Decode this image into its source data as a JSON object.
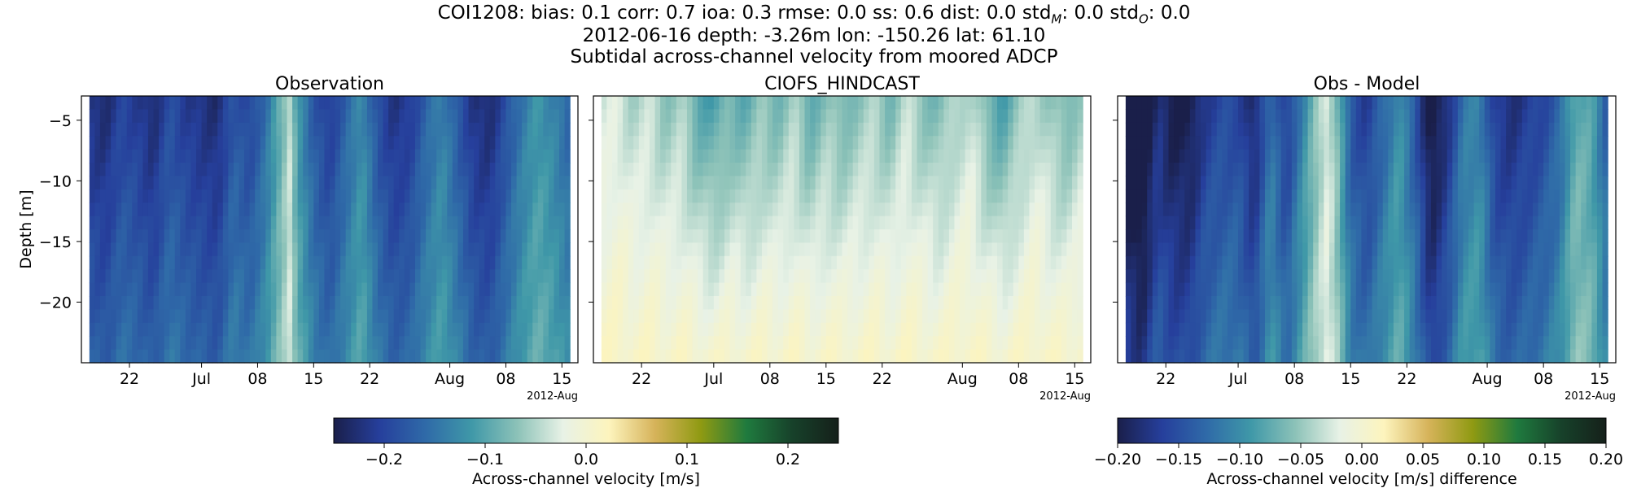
{
  "figure": {
    "title_lines": [
      "COI1208: bias: 0.1  corr: 0.7  ioa: 0.3  rmse: 0.0  ss: 0.6  dist: 0.0  std",
      "2012-06-16 depth: -3.26m lon: -150.26 lat: 61.10",
      "Subtidal across-channel velocity from moored ADCP"
    ],
    "title_stats": {
      "station": "COI1208",
      "bias": "0.1",
      "corr": "0.7",
      "ioa": "0.3",
      "rmse": "0.0",
      "ss": "0.6",
      "dist": "0.0",
      "std_M": "0.0",
      "std_O": "0.0"
    }
  },
  "chart_data": [
    {
      "type": "heatmap",
      "title": "Observation",
      "ylabel": "Depth [m]",
      "ylim": [
        -25,
        -3
      ],
      "yticks": [
        -5,
        -10,
        -15,
        -20
      ],
      "xticks": [
        "22",
        "Jul",
        "08",
        "15",
        "22",
        "Aug",
        "08",
        "15"
      ],
      "x_offset_label": "2012-Aug",
      "x_range": [
        "2012-06-16",
        "2012-08-16"
      ],
      "colormap": "delta",
      "vlim": [
        -0.25,
        0.25
      ],
      "time_profile": [
        {
          "date": "2012-06-17",
          "value": -0.21
        },
        {
          "date": "2012-06-19",
          "value": -0.22
        },
        {
          "date": "2012-06-21",
          "value": -0.19
        },
        {
          "date": "2012-06-23",
          "value": -0.2
        },
        {
          "date": "2012-06-25",
          "value": -0.22
        },
        {
          "date": "2012-06-27",
          "value": -0.18
        },
        {
          "date": "2012-06-29",
          "value": -0.2
        },
        {
          "date": "2012-07-01",
          "value": -0.21
        },
        {
          "date": "2012-07-03",
          "value": -0.22
        },
        {
          "date": "2012-07-05",
          "value": -0.17
        },
        {
          "date": "2012-07-07",
          "value": -0.19
        },
        {
          "date": "2012-07-09",
          "value": -0.15
        },
        {
          "date": "2012-07-11",
          "value": -0.08
        },
        {
          "date": "2012-07-12",
          "value": -0.04
        },
        {
          "date": "2012-07-13",
          "value": -0.11
        },
        {
          "date": "2012-07-15",
          "value": -0.17
        },
        {
          "date": "2012-07-17",
          "value": -0.2
        },
        {
          "date": "2012-07-19",
          "value": -0.16
        },
        {
          "date": "2012-07-21",
          "value": -0.12
        },
        {
          "date": "2012-07-23",
          "value": -0.18
        },
        {
          "date": "2012-07-25",
          "value": -0.21
        },
        {
          "date": "2012-07-27",
          "value": -0.2
        },
        {
          "date": "2012-07-29",
          "value": -0.16
        },
        {
          "date": "2012-07-31",
          "value": -0.13
        },
        {
          "date": "2012-08-02",
          "value": -0.17
        },
        {
          "date": "2012-08-04",
          "value": -0.21
        },
        {
          "date": "2012-08-06",
          "value": -0.22
        },
        {
          "date": "2012-08-08",
          "value": -0.18
        },
        {
          "date": "2012-08-10",
          "value": -0.14
        },
        {
          "date": "2012-08-12",
          "value": -0.11
        },
        {
          "date": "2012-08-14",
          "value": -0.13
        },
        {
          "date": "2012-08-16",
          "value": -0.16
        }
      ]
    },
    {
      "type": "heatmap",
      "title": "CIOFS_HINDCAST",
      "ylim": [
        -25,
        -3
      ],
      "xticks": [
        "22",
        "Jul",
        "08",
        "15",
        "22",
        "Aug",
        "08",
        "15"
      ],
      "x_offset_label": "2012-Aug",
      "x_range": [
        "2012-06-16",
        "2012-08-16"
      ],
      "colormap": "delta",
      "vlim": [
        -0.25,
        0.25
      ],
      "time_profile": [
        {
          "date": "2012-06-17",
          "value": -0.03
        },
        {
          "date": "2012-06-19",
          "value": -0.02
        },
        {
          "date": "2012-06-21",
          "value": -0.04
        },
        {
          "date": "2012-06-23",
          "value": -0.03
        },
        {
          "date": "2012-06-25",
          "value": -0.05
        },
        {
          "date": "2012-06-27",
          "value": -0.04
        },
        {
          "date": "2012-06-29",
          "value": -0.07
        },
        {
          "date": "2012-07-01",
          "value": -0.08
        },
        {
          "date": "2012-07-03",
          "value": -0.06
        },
        {
          "date": "2012-07-05",
          "value": -0.07
        },
        {
          "date": "2012-07-07",
          "value": -0.05
        },
        {
          "date": "2012-07-09",
          "value": -0.06
        },
        {
          "date": "2012-07-11",
          "value": -0.04
        },
        {
          "date": "2012-07-13",
          "value": -0.07
        },
        {
          "date": "2012-07-15",
          "value": -0.05
        },
        {
          "date": "2012-07-17",
          "value": -0.06
        },
        {
          "date": "2012-07-19",
          "value": -0.05
        },
        {
          "date": "2012-07-21",
          "value": -0.04
        },
        {
          "date": "2012-07-23",
          "value": -0.06
        },
        {
          "date": "2012-07-25",
          "value": -0.03
        },
        {
          "date": "2012-07-27",
          "value": -0.05
        },
        {
          "date": "2012-07-29",
          "value": -0.06
        },
        {
          "date": "2012-07-31",
          "value": -0.04
        },
        {
          "date": "2012-08-02",
          "value": -0.03
        },
        {
          "date": "2012-08-04",
          "value": -0.06
        },
        {
          "date": "2012-08-06",
          "value": -0.08
        },
        {
          "date": "2012-08-08",
          "value": -0.05
        },
        {
          "date": "2012-08-10",
          "value": -0.03
        },
        {
          "date": "2012-08-12",
          "value": -0.05
        },
        {
          "date": "2012-08-14",
          "value": -0.06
        },
        {
          "date": "2012-08-16",
          "value": -0.04
        }
      ]
    },
    {
      "type": "heatmap",
      "title": "Obs - Model",
      "ylim": [
        -25,
        -3
      ],
      "xticks": [
        "22",
        "Jul",
        "08",
        "15",
        "22",
        "Aug",
        "08",
        "15"
      ],
      "x_offset_label": "2012-Aug",
      "x_range": [
        "2012-06-16",
        "2012-08-16"
      ],
      "colormap": "delta",
      "vlim": [
        -0.2,
        0.2
      ],
      "time_profile": [
        {
          "date": "2012-06-17",
          "value": -0.18
        },
        {
          "date": "2012-06-19",
          "value": -0.2
        },
        {
          "date": "2012-06-21",
          "value": -0.15
        },
        {
          "date": "2012-06-23",
          "value": -0.17
        },
        {
          "date": "2012-06-25",
          "value": -0.17
        },
        {
          "date": "2012-06-27",
          "value": -0.14
        },
        {
          "date": "2012-06-29",
          "value": -0.13
        },
        {
          "date": "2012-07-01",
          "value": -0.13
        },
        {
          "date": "2012-07-03",
          "value": -0.16
        },
        {
          "date": "2012-07-05",
          "value": -0.1
        },
        {
          "date": "2012-07-07",
          "value": -0.14
        },
        {
          "date": "2012-07-09",
          "value": -0.09
        },
        {
          "date": "2012-07-11",
          "value": -0.04
        },
        {
          "date": "2012-07-12",
          "value": -0.02
        },
        {
          "date": "2012-07-13",
          "value": -0.04
        },
        {
          "date": "2012-07-15",
          "value": -0.12
        },
        {
          "date": "2012-07-17",
          "value": -0.14
        },
        {
          "date": "2012-07-19",
          "value": -0.11
        },
        {
          "date": "2012-07-21",
          "value": -0.08
        },
        {
          "date": "2012-07-23",
          "value": -0.12
        },
        {
          "date": "2012-07-25",
          "value": -0.18
        },
        {
          "date": "2012-07-27",
          "value": -0.15
        },
        {
          "date": "2012-07-29",
          "value": -0.1
        },
        {
          "date": "2012-07-31",
          "value": -0.09
        },
        {
          "date": "2012-08-02",
          "value": -0.14
        },
        {
          "date": "2012-08-04",
          "value": -0.15
        },
        {
          "date": "2012-08-06",
          "value": -0.14
        },
        {
          "date": "2012-08-08",
          "value": -0.13
        },
        {
          "date": "2012-08-10",
          "value": -0.11
        },
        {
          "date": "2012-08-12",
          "value": -0.06
        },
        {
          "date": "2012-08-14",
          "value": -0.07
        },
        {
          "date": "2012-08-16",
          "value": -0.12
        }
      ]
    }
  ],
  "colorbars": [
    {
      "label": "Across-channel velocity [m/s]",
      "vlim": [
        -0.25,
        0.25
      ],
      "ticks": [
        {
          "value": -0.2,
          "label": "−0.2"
        },
        {
          "value": -0.1,
          "label": "−0.1"
        },
        {
          "value": 0.0,
          "label": "0.0"
        },
        {
          "value": 0.1,
          "label": "0.1"
        },
        {
          "value": 0.2,
          "label": "0.2"
        }
      ]
    },
    {
      "label": "Across-channel velocity [m/s] difference",
      "vlim": [
        -0.2,
        0.2
      ],
      "ticks": [
        {
          "value": -0.2,
          "label": "−0.20"
        },
        {
          "value": -0.15,
          "label": "−0.15"
        },
        {
          "value": -0.1,
          "label": "−0.10"
        },
        {
          "value": -0.05,
          "label": "−0.05"
        },
        {
          "value": 0.0,
          "label": "0.00"
        },
        {
          "value": 0.05,
          "label": "0.05"
        },
        {
          "value": 0.1,
          "label": "0.10"
        },
        {
          "value": 0.15,
          "label": "0.15"
        },
        {
          "value": 0.2,
          "label": "0.20"
        }
      ]
    }
  ],
  "colormap_stops": [
    "#1a1f4a",
    "#263f9c",
    "#2f6aa8",
    "#3f98a8",
    "#8cc2b8",
    "#e8f2e6",
    "#fdf4bd",
    "#d6b35a",
    "#8f9a12",
    "#1f7a3e",
    "#17412a",
    "#15201a"
  ]
}
